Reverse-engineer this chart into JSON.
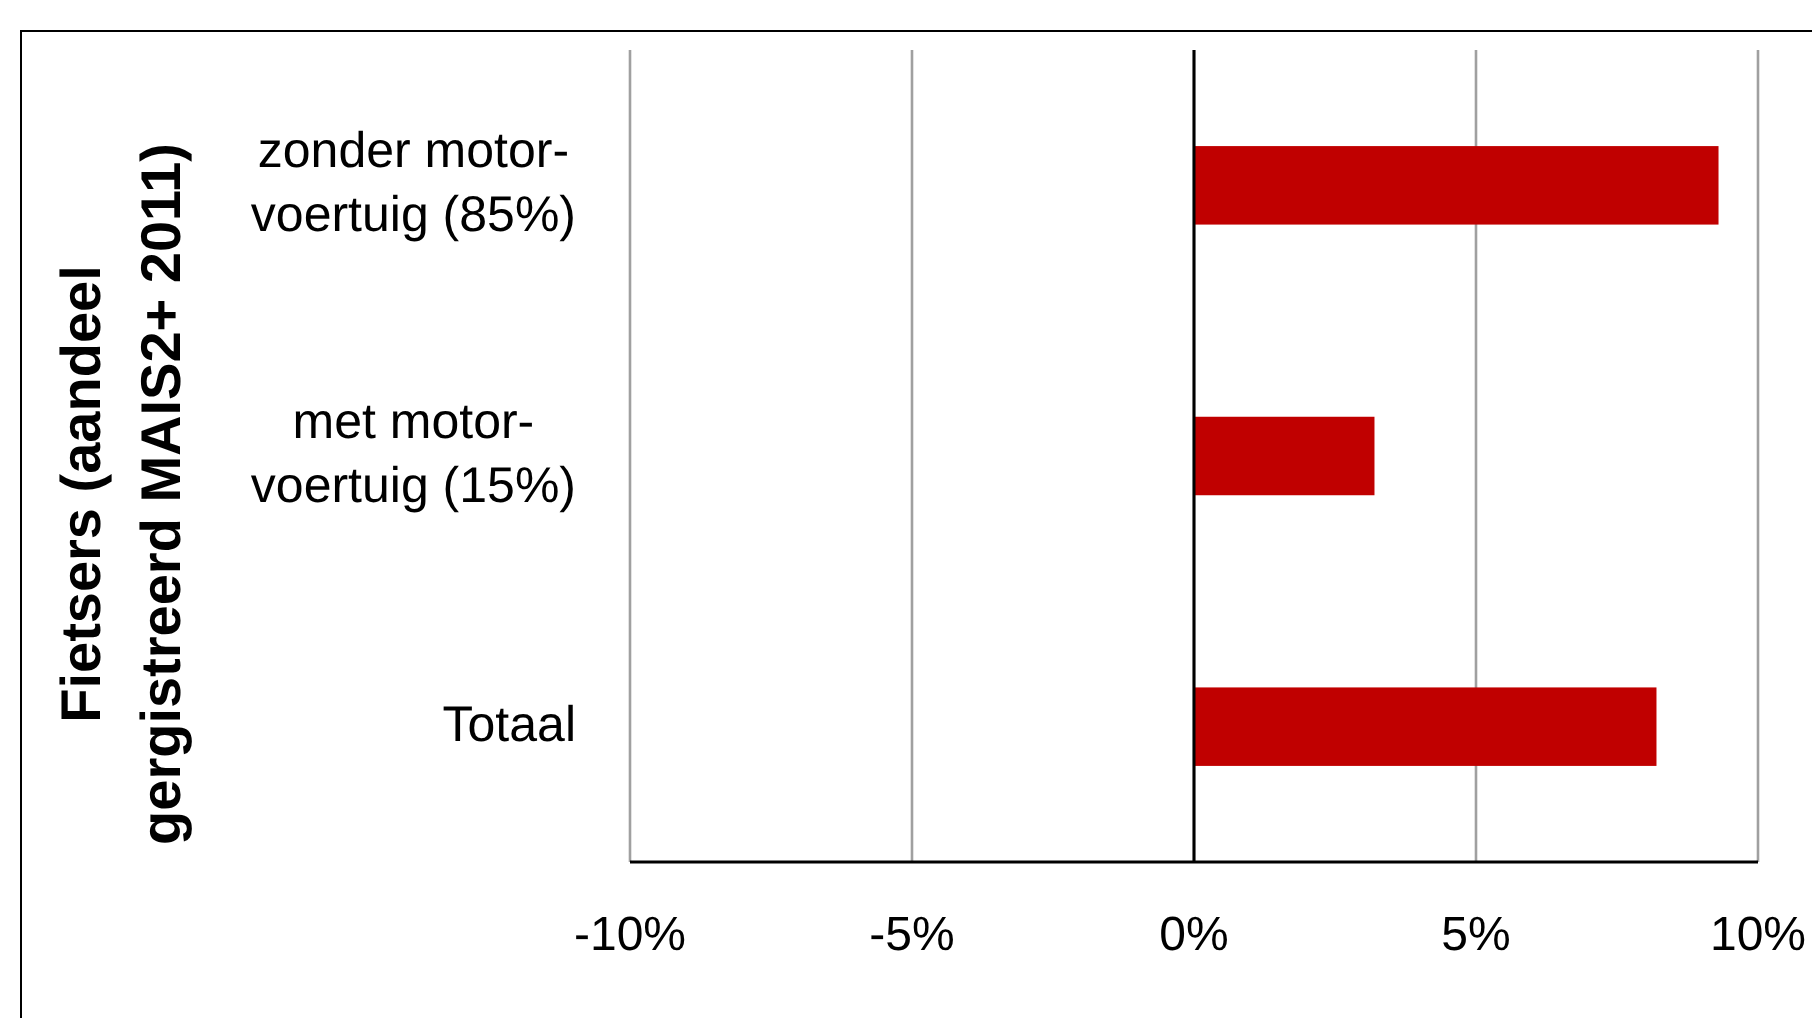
{
  "chart_data": {
    "type": "bar",
    "orientation": "horizontal",
    "ylabel": "Fietsers (aandeel\ngergistreerd MAIS2+ 2011)",
    "categories": [
      "zonder motor-\nvoertuig (85%)",
      "met motor-\nvoertuig (15%)",
      "Totaal"
    ],
    "values": [
      9.3,
      3.2,
      8.2
    ],
    "color": "#c00000",
    "xlim": [
      -10,
      10
    ],
    "xticks": [
      {
        "value": -10,
        "label": "-10%"
      },
      {
        "value": -5,
        "label": "-5%"
      },
      {
        "value": 0,
        "label": "0%"
      },
      {
        "value": 5,
        "label": "5%"
      },
      {
        "value": 10,
        "label": "10%"
      }
    ],
    "grid": "x"
  }
}
